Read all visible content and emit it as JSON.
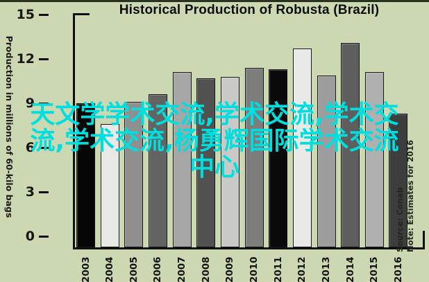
{
  "page": {
    "background_color": "#ccd8b2",
    "top_strip_color": "#29321f"
  },
  "chart_data": {
    "type": "bar",
    "title": "Historical Production of Robusta (Brazil)",
    "ylabel": "Production in millions of 60-kilo bags",
    "xlabel": "",
    "categories": [
      "2003",
      "2004",
      "2005",
      "2006",
      "2007",
      "2008",
      "2009",
      "2010",
      "2011",
      "2012",
      "2013",
      "2014",
      "2015",
      "2016"
    ],
    "values": [
      9.0,
      7.6,
      9.1,
      9.6,
      11.1,
      10.7,
      10.8,
      11.4,
      11.3,
      12.7,
      10.9,
      13.1,
      11.1,
      8.3
    ],
    "bar_colors": [
      "#060606",
      "#e8e8e6",
      "#8f8f8f",
      "#636363",
      "#a6a6a6",
      "#515151",
      "#c9c9c7",
      "#7d7d7d",
      "#0a0a0a",
      "#e9e9e7",
      "#9d9d9d",
      "#5e5e5e",
      "#b0b0b0",
      "#3d3d3d"
    ],
    "yticks": [
      0,
      3,
      6,
      9,
      12,
      15
    ],
    "ylim": [
      0,
      15
    ],
    "grid": false,
    "legend": null,
    "source": "Source: Conab",
    "note": "Note: Estimates for 2016"
  },
  "watermark": {
    "color": "#00dfdf",
    "lines": [
      "天文学学术交流,学术交流,学术交",
      "流,学术交流,杨勇辉国际学术交流",
      "中心"
    ]
  }
}
